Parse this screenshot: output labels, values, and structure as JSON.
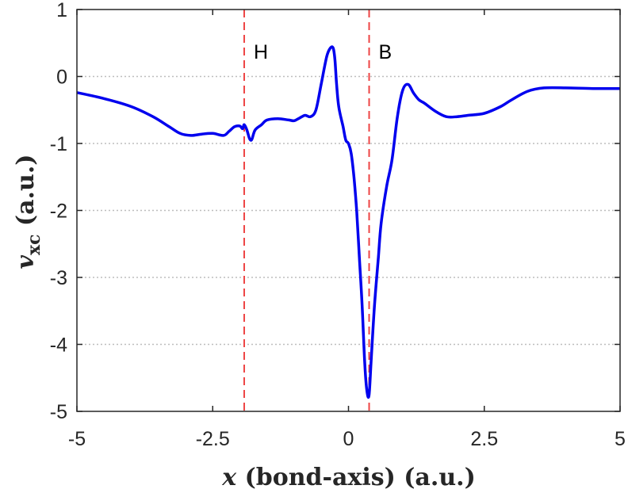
{
  "chart_data": {
    "type": "line",
    "title": "",
    "xlabel": {
      "var": "x",
      "rest": " (bond-axis) (a.u.)"
    },
    "ylabel": {
      "var": "v",
      "sub": "xc",
      "rest": " (a.u.)"
    },
    "xlim": [
      -5,
      5
    ],
    "ylim": [
      -5,
      1
    ],
    "xticks": [
      -5,
      -2.5,
      0,
      2.5,
      5
    ],
    "xtick_labels": [
      "-5",
      "-2.5",
      "0",
      "2.5",
      "5"
    ],
    "yticks": [
      1,
      0,
      -1,
      -2,
      -3,
      -4,
      -5
    ],
    "ytick_labels": [
      "1",
      "0",
      "-1",
      "-2",
      "-3",
      "-4",
      "-5"
    ],
    "grid": "y-dotted",
    "colors": {
      "series": "#0000ee",
      "marker_lines": "#ee4444",
      "axes": "#262626",
      "grid": "#bdbdbd"
    },
    "vertical_lines": [
      {
        "x": -1.92,
        "label": "H"
      },
      {
        "x": 0.38,
        "label": "B"
      }
    ],
    "series": [
      {
        "x": [
          -5,
          -4.5,
          -4.0,
          -3.6,
          -3.3,
          -3.1,
          -2.9,
          -2.7,
          -2.5,
          -2.3,
          -2.2,
          -2.1,
          -2.0,
          -1.95,
          -1.92,
          -1.87,
          -1.82,
          -1.78,
          -1.72,
          -1.6,
          -1.5,
          -1.3,
          -1.1,
          -1.0,
          -0.9,
          -0.8,
          -0.7,
          -0.6,
          -0.5,
          -0.4,
          -0.33,
          -0.28,
          -0.25,
          -0.22,
          -0.18,
          -0.1,
          -0.05,
          0,
          0.05,
          0.1,
          0.15,
          0.2,
          0.25,
          0.3,
          0.34,
          0.38,
          0.42,
          0.48,
          0.55,
          0.6,
          0.7,
          0.8,
          0.9,
          1.0,
          1.1,
          1.2,
          1.3,
          1.4,
          1.6,
          1.8,
          2.0,
          2.2,
          2.5,
          2.8,
          3.0,
          3.3,
          3.6,
          4.0,
          4.5,
          5.0
        ],
        "y": [
          -0.24,
          -0.33,
          -0.45,
          -0.6,
          -0.75,
          -0.85,
          -0.88,
          -0.86,
          -0.85,
          -0.88,
          -0.82,
          -0.75,
          -0.74,
          -0.78,
          -0.72,
          -0.8,
          -0.93,
          -0.94,
          -0.8,
          -0.72,
          -0.65,
          -0.63,
          -0.65,
          -0.66,
          -0.62,
          -0.58,
          -0.6,
          -0.5,
          -0.1,
          0.3,
          0.43,
          0.42,
          0.25,
          -0.1,
          -0.45,
          -0.75,
          -0.95,
          -1.0,
          -1.15,
          -1.5,
          -2.0,
          -2.7,
          -3.4,
          -4.3,
          -4.7,
          -4.75,
          -4.2,
          -3.4,
          -2.7,
          -2.2,
          -1.65,
          -1.25,
          -0.6,
          -0.2,
          -0.12,
          -0.25,
          -0.35,
          -0.4,
          -0.52,
          -0.6,
          -0.6,
          -0.58,
          -0.55,
          -0.45,
          -0.35,
          -0.22,
          -0.17,
          -0.17,
          -0.18,
          -0.18
        ]
      }
    ]
  }
}
